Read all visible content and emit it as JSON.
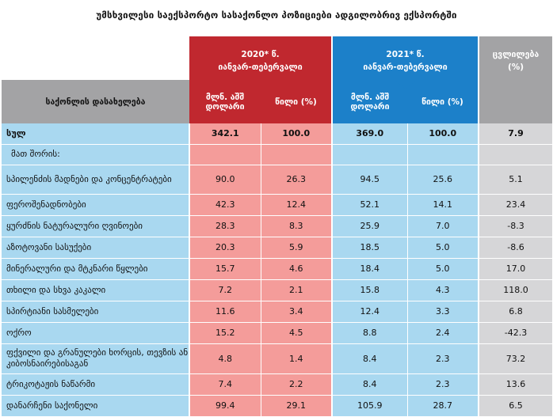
{
  "title": "უმსხვილესი საექსპორტო სასაქონლო პოზიციები ადგილობრივ ექსპორტში",
  "header": {
    "period_2020": "2020* წ.",
    "months_2020": "იანვარ-თებერვალი",
    "period_2021": "2021* წ.",
    "months_2021": "იანვარ-თებერვალი",
    "change_label": "ცვლილება",
    "change_unit": "(%)",
    "category_label": "საქონლის დასახელება",
    "usd_label_1": "მლნ. აშშ",
    "usd_label_2": "დოლარი",
    "share_label": "წილი (%)"
  },
  "rows": [
    {
      "name": "სულ",
      "v2020": "342.1",
      "s2020": "100.0",
      "v2021": "369.0",
      "s2021": "100.0",
      "change": "7.9"
    },
    {
      "name": "მათ შორის:",
      "v2020": "",
      "s2020": "",
      "v2021": "",
      "s2021": "",
      "change": ""
    },
    {
      "name": "სპილენძის მადნები და კონცენტრატები",
      "v2020": "90.0",
      "s2020": "26.3",
      "v2021": "94.5",
      "s2021": "25.6",
      "change": "5.1"
    },
    {
      "name": "ფეროშენადნობები",
      "v2020": "42.3",
      "s2020": "12.4",
      "v2021": "52.1",
      "s2021": "14.1",
      "change": "23.4"
    },
    {
      "name": "ყურძნის ნატურალური ღვინოები",
      "v2020": "28.3",
      "s2020": "8.3",
      "v2021": "25.9",
      "s2021": "7.0",
      "change": "-8.3"
    },
    {
      "name": "აზოტოვანი სასუქები",
      "v2020": "20.3",
      "s2020": "5.9",
      "v2021": "18.5",
      "s2021": "5.0",
      "change": "-8.6"
    },
    {
      "name": "მინერალური და მტკნარი წყლები",
      "v2020": "15.7",
      "s2020": "4.6",
      "v2021": "18.4",
      "s2021": "5.0",
      "change": "17.0"
    },
    {
      "name": "თხილი და სხვა კაკალი",
      "v2020": "7.2",
      "s2020": "2.1",
      "v2021": "15.8",
      "s2021": "4.3",
      "change": "118.0"
    },
    {
      "name": "სპირტიანი სასმელები",
      "v2020": "11.6",
      "s2020": "3.4",
      "v2021": "12.4",
      "s2021": "3.3",
      "change": "6.8"
    },
    {
      "name": "ოქრო",
      "v2020": "15.2",
      "s2020": "4.5",
      "v2021": "8.8",
      "s2021": "2.4",
      "change": "-42.3"
    },
    {
      "name": "ფქვილი და გრანულები ხორცის, თევზის ან კიბოსნაირებისაგან",
      "v2020": "4.8",
      "s2020": "1.4",
      "v2021": "8.4",
      "s2021": "2.3",
      "change": "73.2"
    },
    {
      "name": "ტრიკოტაჟის ნაწარმი",
      "v2020": "7.4",
      "s2020": "2.2",
      "v2021": "8.4",
      "s2021": "2.3",
      "change": "13.6"
    },
    {
      "name": "დანარჩენი საქონელი",
      "v2020": "99.4",
      "s2020": "29.1",
      "v2021": "105.9",
      "s2021": "28.7",
      "change": "6.5"
    }
  ]
}
